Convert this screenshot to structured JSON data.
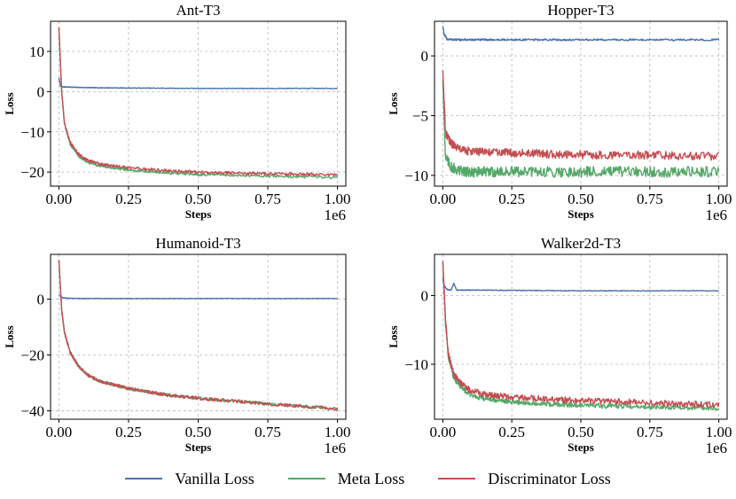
{
  "chart_data": [
    {
      "type": "line",
      "title": "Ant-T3",
      "xlabel": "Steps",
      "ylabel": "Loss",
      "x_offset_label": "1e6",
      "xlim": [
        -0.03,
        1.03
      ],
      "ylim": [
        -23.5,
        17.5
      ],
      "xticks": [
        0.0,
        0.25,
        0.5,
        0.75,
        1.0
      ],
      "xtick_labels": [
        "0.00",
        "0.25",
        "0.50",
        "0.75",
        "1.00"
      ],
      "yticks": [
        -20,
        -10,
        0,
        10
      ],
      "ytick_labels": [
        "−20",
        "−10",
        "0",
        "10"
      ],
      "grid": true,
      "series": [
        {
          "name": "Vanilla Loss",
          "x": [
            0.0,
            0.005,
            0.01,
            0.05,
            0.1,
            0.25,
            0.5,
            0.75,
            1.0
          ],
          "y": [
            3.5,
            1.5,
            1.2,
            1.1,
            1.0,
            0.9,
            0.8,
            0.8,
            0.8
          ],
          "noise": 0.08
        },
        {
          "name": "Meta Loss",
          "x": [
            0.0,
            0.01,
            0.02,
            0.04,
            0.07,
            0.1,
            0.15,
            0.25,
            0.4,
            0.5,
            0.75,
            1.0
          ],
          "y": [
            16,
            0,
            -8,
            -13,
            -16,
            -17.5,
            -18.5,
            -19.5,
            -20.3,
            -20.6,
            -21.0,
            -21.4
          ],
          "noise": 0.3
        },
        {
          "name": "Discriminator Loss",
          "x": [
            0.0,
            0.01,
            0.02,
            0.04,
            0.07,
            0.1,
            0.15,
            0.25,
            0.4,
            0.5,
            0.75,
            1.0
          ],
          "y": [
            16,
            0,
            -8,
            -12.5,
            -15.5,
            -17,
            -18,
            -19,
            -19.7,
            -20.0,
            -20.4,
            -20.7
          ],
          "noise": 0.35
        }
      ]
    },
    {
      "type": "line",
      "title": "Hopper-T3",
      "xlabel": "Steps",
      "ylabel": "Loss",
      "x_offset_label": "1e6",
      "xlim": [
        -0.03,
        1.03
      ],
      "ylim": [
        -10.9,
        2.9
      ],
      "xticks": [
        0.0,
        0.25,
        0.5,
        0.75,
        1.0
      ],
      "xtick_labels": [
        "0.00",
        "0.25",
        "0.50",
        "0.75",
        "1.00"
      ],
      "yticks": [
        -10,
        -5,
        0
      ],
      "ytick_labels": [
        "−10",
        "−5",
        "0"
      ],
      "grid": true,
      "series": [
        {
          "name": "Vanilla Loss",
          "x": [
            0.0,
            0.005,
            0.015,
            0.05,
            0.25,
            0.5,
            0.75,
            1.0
          ],
          "y": [
            2.5,
            1.8,
            1.4,
            1.35,
            1.35,
            1.35,
            1.35,
            1.35
          ],
          "noise": 0.08
        },
        {
          "name": "Meta Loss",
          "x": [
            0.0,
            0.01,
            0.03,
            0.06,
            0.1,
            0.25,
            0.5,
            0.75,
            1.0
          ],
          "y": [
            -2.0,
            -8.5,
            -9.3,
            -9.6,
            -9.7,
            -9.7,
            -9.7,
            -9.7,
            -9.7
          ],
          "noise": 0.45
        },
        {
          "name": "Discriminator Loss",
          "x": [
            0.0,
            0.01,
            0.03,
            0.06,
            0.1,
            0.25,
            0.5,
            0.75,
            1.0
          ],
          "y": [
            -1.2,
            -6.5,
            -7.3,
            -7.8,
            -8.0,
            -8.1,
            -8.3,
            -8.3,
            -8.4
          ],
          "noise": 0.35
        }
      ]
    },
    {
      "type": "line",
      "title": "Humanoid-T3",
      "xlabel": "Steps",
      "ylabel": "Loss",
      "x_offset_label": "1e6",
      "xlim": [
        -0.03,
        1.03
      ],
      "ylim": [
        -43,
        16
      ],
      "xticks": [
        0.0,
        0.25,
        0.5,
        0.75,
        1.0
      ],
      "xtick_labels": [
        "0.00",
        "0.25",
        "0.50",
        "0.75",
        "1.00"
      ],
      "yticks": [
        -40,
        -20,
        0
      ],
      "ytick_labels": [
        "−40",
        "−20",
        "0"
      ],
      "grid": true,
      "series": [
        {
          "name": "Vanilla Loss",
          "x": [
            0.0,
            0.01,
            0.03,
            0.1,
            0.5,
            1.0
          ],
          "y": [
            1.5,
            0.6,
            0.3,
            0.2,
            0.2,
            0.2
          ],
          "noise": 0.08
        },
        {
          "name": "Meta Loss",
          "x": [
            0.0,
            0.01,
            0.02,
            0.04,
            0.07,
            0.1,
            0.15,
            0.25,
            0.4,
            0.5,
            0.75,
            1.0
          ],
          "y": [
            14,
            -4,
            -12,
            -19,
            -24,
            -27,
            -29.5,
            -32,
            -34.5,
            -35.5,
            -37.5,
            -39.3
          ],
          "noise": 0.55
        },
        {
          "name": "Discriminator Loss",
          "x": [
            0.0,
            0.01,
            0.02,
            0.04,
            0.07,
            0.1,
            0.15,
            0.25,
            0.4,
            0.5,
            0.75,
            1.0
          ],
          "y": [
            14,
            -4,
            -12,
            -19,
            -24,
            -27,
            -29.5,
            -32,
            -34.5,
            -35.5,
            -37.5,
            -39.3
          ],
          "noise": 0.6
        }
      ]
    },
    {
      "type": "line",
      "title": "Walker2d-T3",
      "xlabel": "Steps",
      "ylabel": "Loss",
      "x_offset_label": "1e6",
      "xlim": [
        -0.03,
        1.03
      ],
      "ylim": [
        -18,
        6
      ],
      "xticks": [
        0.0,
        0.25,
        0.5,
        0.75,
        1.0
      ],
      "xtick_labels": [
        "0.00",
        "0.25",
        "0.50",
        "0.75",
        "1.00"
      ],
      "yticks": [
        -10,
        0
      ],
      "ytick_labels": [
        "−10",
        "0"
      ],
      "grid": true,
      "series": [
        {
          "name": "Vanilla Loss",
          "x": [
            0.0,
            0.005,
            0.015,
            0.03,
            0.04,
            0.05,
            0.1,
            0.5,
            1.0
          ],
          "y": [
            2.5,
            1.5,
            0.9,
            0.8,
            1.8,
            0.8,
            0.8,
            0.7,
            0.7
          ],
          "noise": 0.05
        },
        {
          "name": "Meta Loss",
          "x": [
            0.0,
            0.01,
            0.02,
            0.04,
            0.07,
            0.1,
            0.15,
            0.25,
            0.5,
            0.75,
            1.0
          ],
          "y": [
            5,
            -4,
            -9,
            -12,
            -13.5,
            -14.5,
            -15,
            -15.5,
            -16,
            -16.2,
            -16.4
          ],
          "noise": 0.35
        },
        {
          "name": "Discriminator Loss",
          "x": [
            0.0,
            0.01,
            0.02,
            0.04,
            0.07,
            0.1,
            0.15,
            0.25,
            0.5,
            0.75,
            1.0
          ],
          "y": [
            5,
            -3.5,
            -8.5,
            -11.5,
            -13,
            -13.8,
            -14.3,
            -14.8,
            -15.3,
            -15.6,
            -15.9
          ],
          "noise": 0.45
        }
      ]
    }
  ],
  "legend": {
    "placement": "bottom-center",
    "items": [
      {
        "label": "Vanilla Loss",
        "color": "#4c72b0"
      },
      {
        "label": "Meta Loss",
        "color": "#55a868"
      },
      {
        "label": "Discriminator Loss",
        "color": "#c44e52"
      }
    ]
  },
  "series_colors": {
    "Vanilla Loss": "#4c72b0",
    "Meta Loss": "#55a868",
    "Discriminator Loss": "#c44e52"
  }
}
